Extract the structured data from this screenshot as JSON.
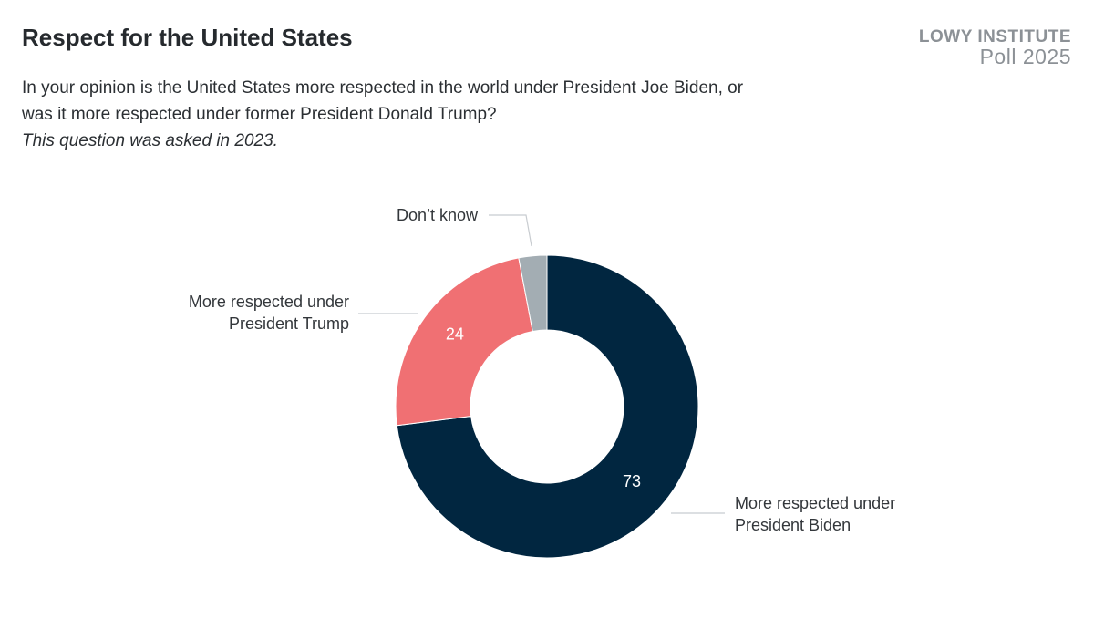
{
  "title": "Respect for the United States",
  "subtitle_line1": "In your opinion is the United States more respected in the world under President Joe Biden, or",
  "subtitle_line2": "was it more respected under former President Donald Trump?",
  "note": "This question was asked in 2023.",
  "brand": {
    "line1": "LOWY INSTITUTE",
    "line2": "Poll 2025"
  },
  "chart_data": {
    "type": "pie",
    "donut": true,
    "slices": [
      {
        "name": "More respected under President Biden",
        "label_lines": [
          "More respected under",
          "President Biden"
        ],
        "value": 73,
        "data_label": "73",
        "color": "#012640"
      },
      {
        "name": "More respected under President Trump",
        "label_lines": [
          "More respected under",
          "President Trump"
        ],
        "value": 24,
        "data_label": "24",
        "color": "#f07073"
      },
      {
        "name": "Don’t know",
        "label_lines": [
          "Don’t know"
        ],
        "value": 3,
        "data_label": "",
        "color": "#a3adb3"
      }
    ]
  }
}
